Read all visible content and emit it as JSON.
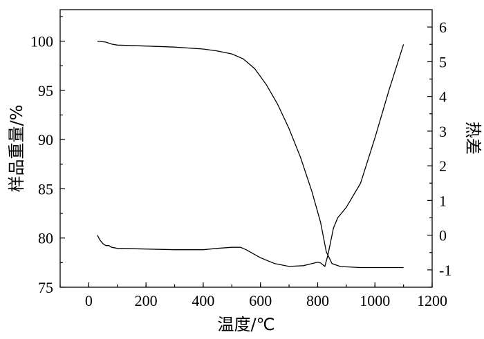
{
  "chart_data": {
    "type": "line",
    "xlabel": "温度/℃",
    "ylabel_left": "样品重量/%",
    "ylabel_right": "热差",
    "xlim": [
      -100,
      1200
    ],
    "ylim_left": [
      75,
      103.2
    ],
    "ylim_right": [
      -1.5,
      6.5
    ],
    "x_ticks": [
      "0",
      "200",
      "400",
      "600",
      "800",
      "1000",
      "1200"
    ],
    "y_left_ticks": [
      "75",
      "80",
      "85",
      "90",
      "95",
      "100"
    ],
    "y_right_ticks": [
      "-1",
      "0",
      "1",
      "2",
      "3",
      "4",
      "5",
      "6"
    ],
    "grid": false,
    "series": [
      {
        "axis": "left",
        "x": [
          30,
          60,
          70,
          80,
          100,
          200,
          300,
          400,
          450,
          500,
          540,
          580,
          620,
          660,
          700,
          740,
          780,
          810,
          830,
          850,
          880,
          950,
          1000,
          1050,
          1100
        ],
        "values": [
          100.0,
          99.9,
          99.8,
          99.7,
          99.6,
          99.5,
          99.4,
          99.2,
          99.0,
          98.7,
          98.2,
          97.2,
          95.6,
          93.6,
          91.1,
          88.2,
          84.7,
          81.6,
          78.6,
          77.4,
          77.1,
          77.0,
          77.0,
          77.0,
          77.0
        ]
      },
      {
        "axis": "right",
        "x": [
          30,
          40,
          50,
          60,
          70,
          80,
          100,
          200,
          300,
          400,
          450,
          500,
          530,
          550,
          600,
          650,
          700,
          750,
          780,
          800,
          810,
          825,
          835,
          845,
          855,
          870,
          900,
          950,
          1000,
          1050,
          1100
        ],
        "values": [
          0.0,
          -0.15,
          -0.25,
          -0.3,
          -0.3,
          -0.35,
          -0.38,
          -0.4,
          -0.42,
          -0.42,
          -0.38,
          -0.35,
          -0.35,
          -0.42,
          -0.65,
          -0.82,
          -0.9,
          -0.88,
          -0.82,
          -0.78,
          -0.8,
          -0.9,
          -0.6,
          -0.2,
          0.2,
          0.5,
          0.8,
          1.5,
          2.8,
          4.2,
          5.5
        ]
      }
    ]
  }
}
